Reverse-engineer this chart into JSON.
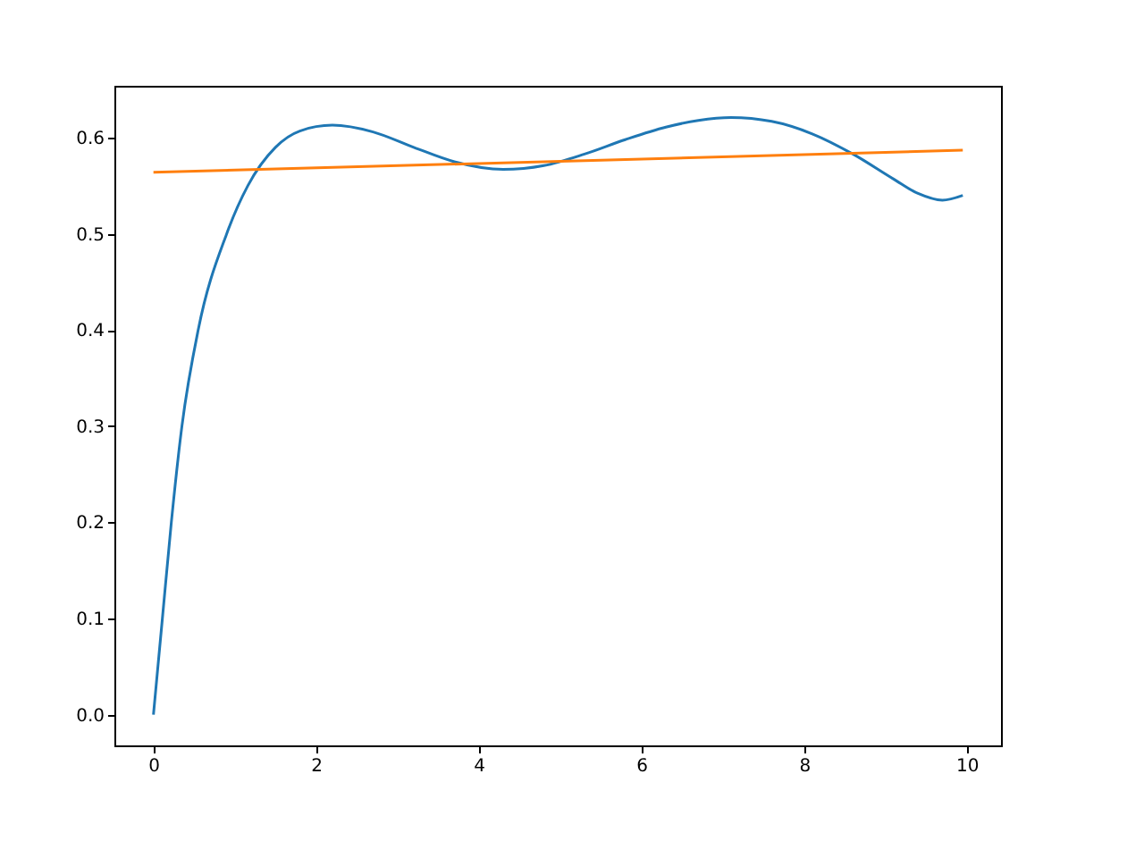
{
  "chart_data": {
    "type": "line",
    "xlim": [
      -0.48,
      10.42
    ],
    "ylim": [
      -0.032,
      0.654
    ],
    "xticks": [
      0,
      2,
      4,
      6,
      8,
      10
    ],
    "yticks": [
      {
        "value": 0,
        "label": "0.0"
      },
      0.1,
      0.2,
      0.3,
      0.4,
      0.5,
      0.6
    ],
    "grid": false,
    "legend": false,
    "marker": "none",
    "line_style": "solid",
    "series": [
      {
        "color": "#1f77b4",
        "x": [
          0,
          0.11,
          0.22,
          0.35,
          0.55,
          0.9,
          1.16,
          1.5,
          1.8,
          2.2,
          2.7,
          3.2,
          3.7,
          4.3,
          4.8,
          5.3,
          5.8,
          6.3,
          6.7,
          7.1,
          7.6,
          8.1,
          8.6,
          9.1,
          9.4,
          9.7,
          9.95
        ],
        "values": [
          0,
          0.1,
          0.2,
          0.3,
          0.4,
          0.5,
          0.55,
          0.59,
          0.607,
          0.613,
          0.606,
          0.59,
          0.575,
          0.567,
          0.571,
          0.583,
          0.598,
          0.611,
          0.618,
          0.621,
          0.617,
          0.604,
          0.583,
          0.557,
          0.542,
          0.535,
          0.54
        ]
      },
      {
        "color": "#ff7f0e",
        "x": [
          0,
          9.95
        ],
        "values": [
          0.564,
          0.587
        ]
      }
    ]
  }
}
